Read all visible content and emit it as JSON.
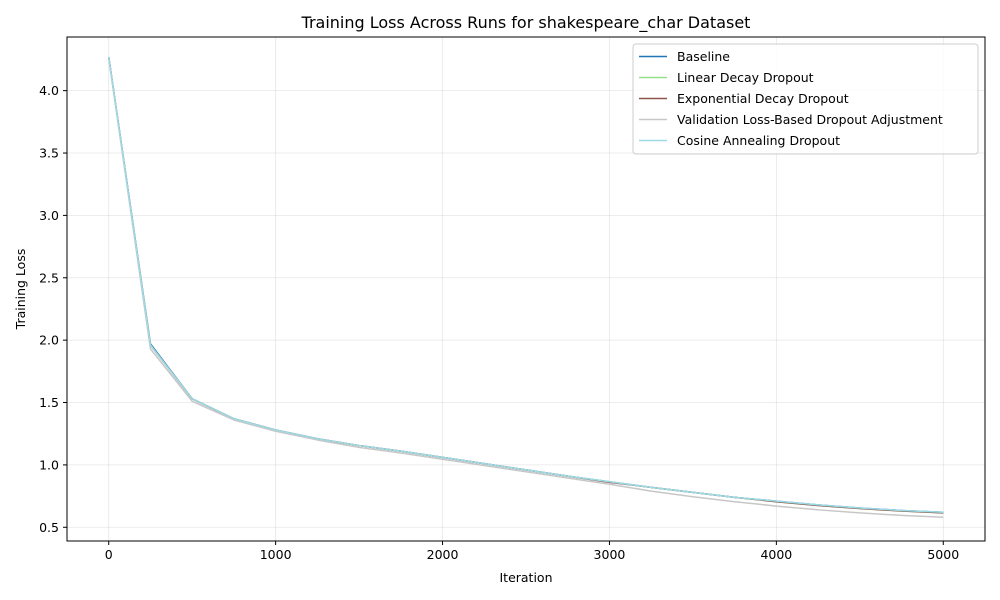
{
  "chart_data": {
    "type": "line",
    "title": "Training Loss Across Runs for shakespeare_char Dataset",
    "xlabel": "Iteration",
    "ylabel": "Training Loss",
    "xlim": [
      -250,
      5250
    ],
    "ylim": [
      0.39,
      4.43
    ],
    "xticks": [
      0,
      1000,
      2000,
      3000,
      4000,
      5000
    ],
    "yticks": [
      0.5,
      1.0,
      1.5,
      2.0,
      2.5,
      3.0,
      3.5,
      4.0
    ],
    "grid": true,
    "legend_position": "top-right",
    "x": [
      0,
      250,
      500,
      750,
      1000,
      1250,
      1500,
      1750,
      2000,
      2250,
      2500,
      2750,
      3000,
      3250,
      3500,
      3750,
      4000,
      4250,
      4500,
      4750,
      5000
    ],
    "series": [
      {
        "name": "Baseline",
        "color": "#1f77b4",
        "values": [
          4.27,
          1.97,
          1.53,
          1.37,
          1.28,
          1.21,
          1.155,
          1.11,
          1.06,
          1.01,
          0.96,
          0.91,
          0.865,
          0.82,
          0.78,
          0.74,
          0.71,
          0.68,
          0.655,
          0.635,
          0.62
        ]
      },
      {
        "name": "Linear Decay Dropout",
        "color": "#98df8a",
        "values": [
          4.27,
          1.96,
          1.53,
          1.37,
          1.28,
          1.21,
          1.155,
          1.11,
          1.06,
          1.01,
          0.96,
          0.91,
          0.865,
          0.82,
          0.78,
          0.74,
          0.705,
          0.675,
          0.65,
          0.63,
          0.615
        ]
      },
      {
        "name": "Exponential Decay Dropout",
        "color": "#8c564b",
        "values": [
          4.27,
          1.96,
          1.53,
          1.37,
          1.28,
          1.21,
          1.155,
          1.11,
          1.06,
          1.01,
          0.96,
          0.91,
          0.86,
          0.82,
          0.78,
          0.74,
          0.705,
          0.675,
          0.65,
          0.63,
          0.615
        ]
      },
      {
        "name": "Validation Loss-Based Dropout Adjustment",
        "color": "#c7c7c7",
        "values": [
          4.26,
          1.93,
          1.51,
          1.36,
          1.27,
          1.2,
          1.14,
          1.095,
          1.045,
          0.995,
          0.945,
          0.895,
          0.845,
          0.79,
          0.745,
          0.705,
          0.67,
          0.64,
          0.615,
          0.595,
          0.58
        ]
      },
      {
        "name": "Cosine Annealing Dropout",
        "color": "#9edae5",
        "values": [
          4.27,
          1.96,
          1.53,
          1.37,
          1.28,
          1.21,
          1.155,
          1.11,
          1.06,
          1.01,
          0.96,
          0.91,
          0.865,
          0.82,
          0.78,
          0.74,
          0.71,
          0.68,
          0.655,
          0.635,
          0.62
        ]
      }
    ]
  }
}
